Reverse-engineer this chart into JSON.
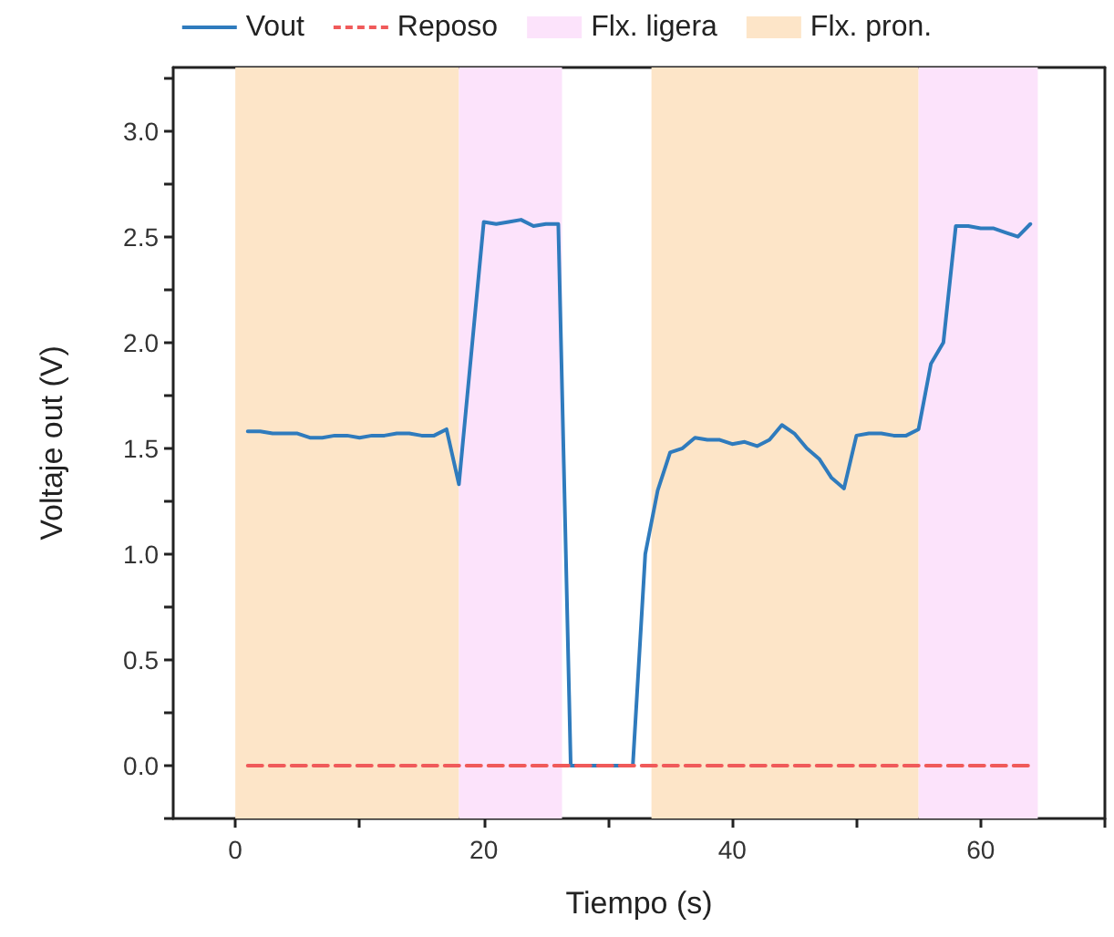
{
  "chart_data": {
    "type": "line",
    "xlabel": "Tiempo (s)",
    "ylabel": "Voltaje out (V)",
    "xlim": [
      -5,
      70
    ],
    "ylim": [
      -0.25,
      3.3
    ],
    "xticks": [
      0,
      {
        "value": 10,
        "label": null
      },
      20,
      {
        "value": 30,
        "label": null
      },
      40,
      {
        "value": 50,
        "label": null
      },
      60,
      {
        "value": 70,
        "label": null
      }
    ],
    "yticks": [
      {
        "value": -0.25,
        "label": null
      },
      {
        "value": 0,
        "label": "0.0"
      },
      {
        "value": 0.25,
        "label": null
      },
      {
        "value": 0.5,
        "label": "0.5"
      },
      {
        "value": 0.75,
        "label": null
      },
      {
        "value": 1,
        "label": "1.0"
      },
      {
        "value": 1.25,
        "label": null
      },
      {
        "value": 1.5,
        "label": "1.5"
      },
      {
        "value": 1.75,
        "label": null
      },
      {
        "value": 2,
        "label": "2.0"
      },
      {
        "value": 2.25,
        "label": null
      },
      {
        "value": 2.5,
        "label": "2.5"
      },
      {
        "value": 2.75,
        "label": null
      },
      {
        "value": 3,
        "label": "3.0"
      },
      {
        "value": 3.25,
        "label": null
      }
    ],
    "series": [
      {
        "name": "Vout",
        "color": "#2f7bbd",
        "line_style": "solid",
        "x": [
          1,
          2,
          3,
          4,
          5,
          6,
          7,
          8,
          9,
          10,
          11,
          12,
          13,
          14,
          15,
          16,
          17,
          18,
          20,
          21,
          22,
          23,
          24,
          25,
          26,
          27,
          28,
          29,
          30,
          31,
          32,
          33,
          34,
          35,
          36,
          37,
          38,
          39,
          40,
          41,
          42,
          43,
          44,
          45,
          46,
          47,
          48,
          49,
          50,
          51,
          52,
          53,
          54,
          55,
          56,
          57,
          58,
          59,
          60,
          61,
          62,
          63,
          64
        ],
        "values": [
          1.58,
          1.58,
          1.57,
          1.57,
          1.57,
          1.55,
          1.55,
          1.56,
          1.56,
          1.55,
          1.56,
          1.56,
          1.57,
          1.57,
          1.56,
          1.56,
          1.59,
          1.33,
          2.57,
          2.56,
          2.57,
          2.58,
          2.55,
          2.56,
          2.56,
          0,
          0,
          0,
          0,
          0,
          0,
          1.0,
          1.3,
          1.48,
          1.5,
          1.55,
          1.54,
          1.54,
          1.52,
          1.53,
          1.51,
          1.54,
          1.61,
          1.57,
          1.5,
          1.45,
          1.36,
          1.31,
          1.56,
          1.57,
          1.57,
          1.56,
          1.56,
          1.59,
          1.9,
          2.0,
          2.55,
          2.55,
          2.54,
          2.54,
          2.52,
          2.5,
          2.56
        ]
      },
      {
        "name": "Reposo",
        "color": "#f05a5a",
        "line_style": "dashed",
        "x": [
          1,
          64
        ],
        "values": [
          0,
          0
        ]
      }
    ],
    "bands": [
      {
        "axis": "x",
        "from": 18,
        "to": 26.3,
        "label": "Flx. ligera",
        "color": "#fce3fb"
      },
      {
        "axis": "x",
        "from": 0,
        "to": 18,
        "label": "Flx. pron.",
        "color": "#fde5c8"
      },
      {
        "axis": "x",
        "from": 55,
        "to": 64.6,
        "color": "#fce3fb"
      },
      {
        "axis": "x",
        "from": 33.5,
        "to": 55,
        "color": "#fde5c8"
      }
    ],
    "marker": "none",
    "grid": false,
    "legend": "top"
  }
}
